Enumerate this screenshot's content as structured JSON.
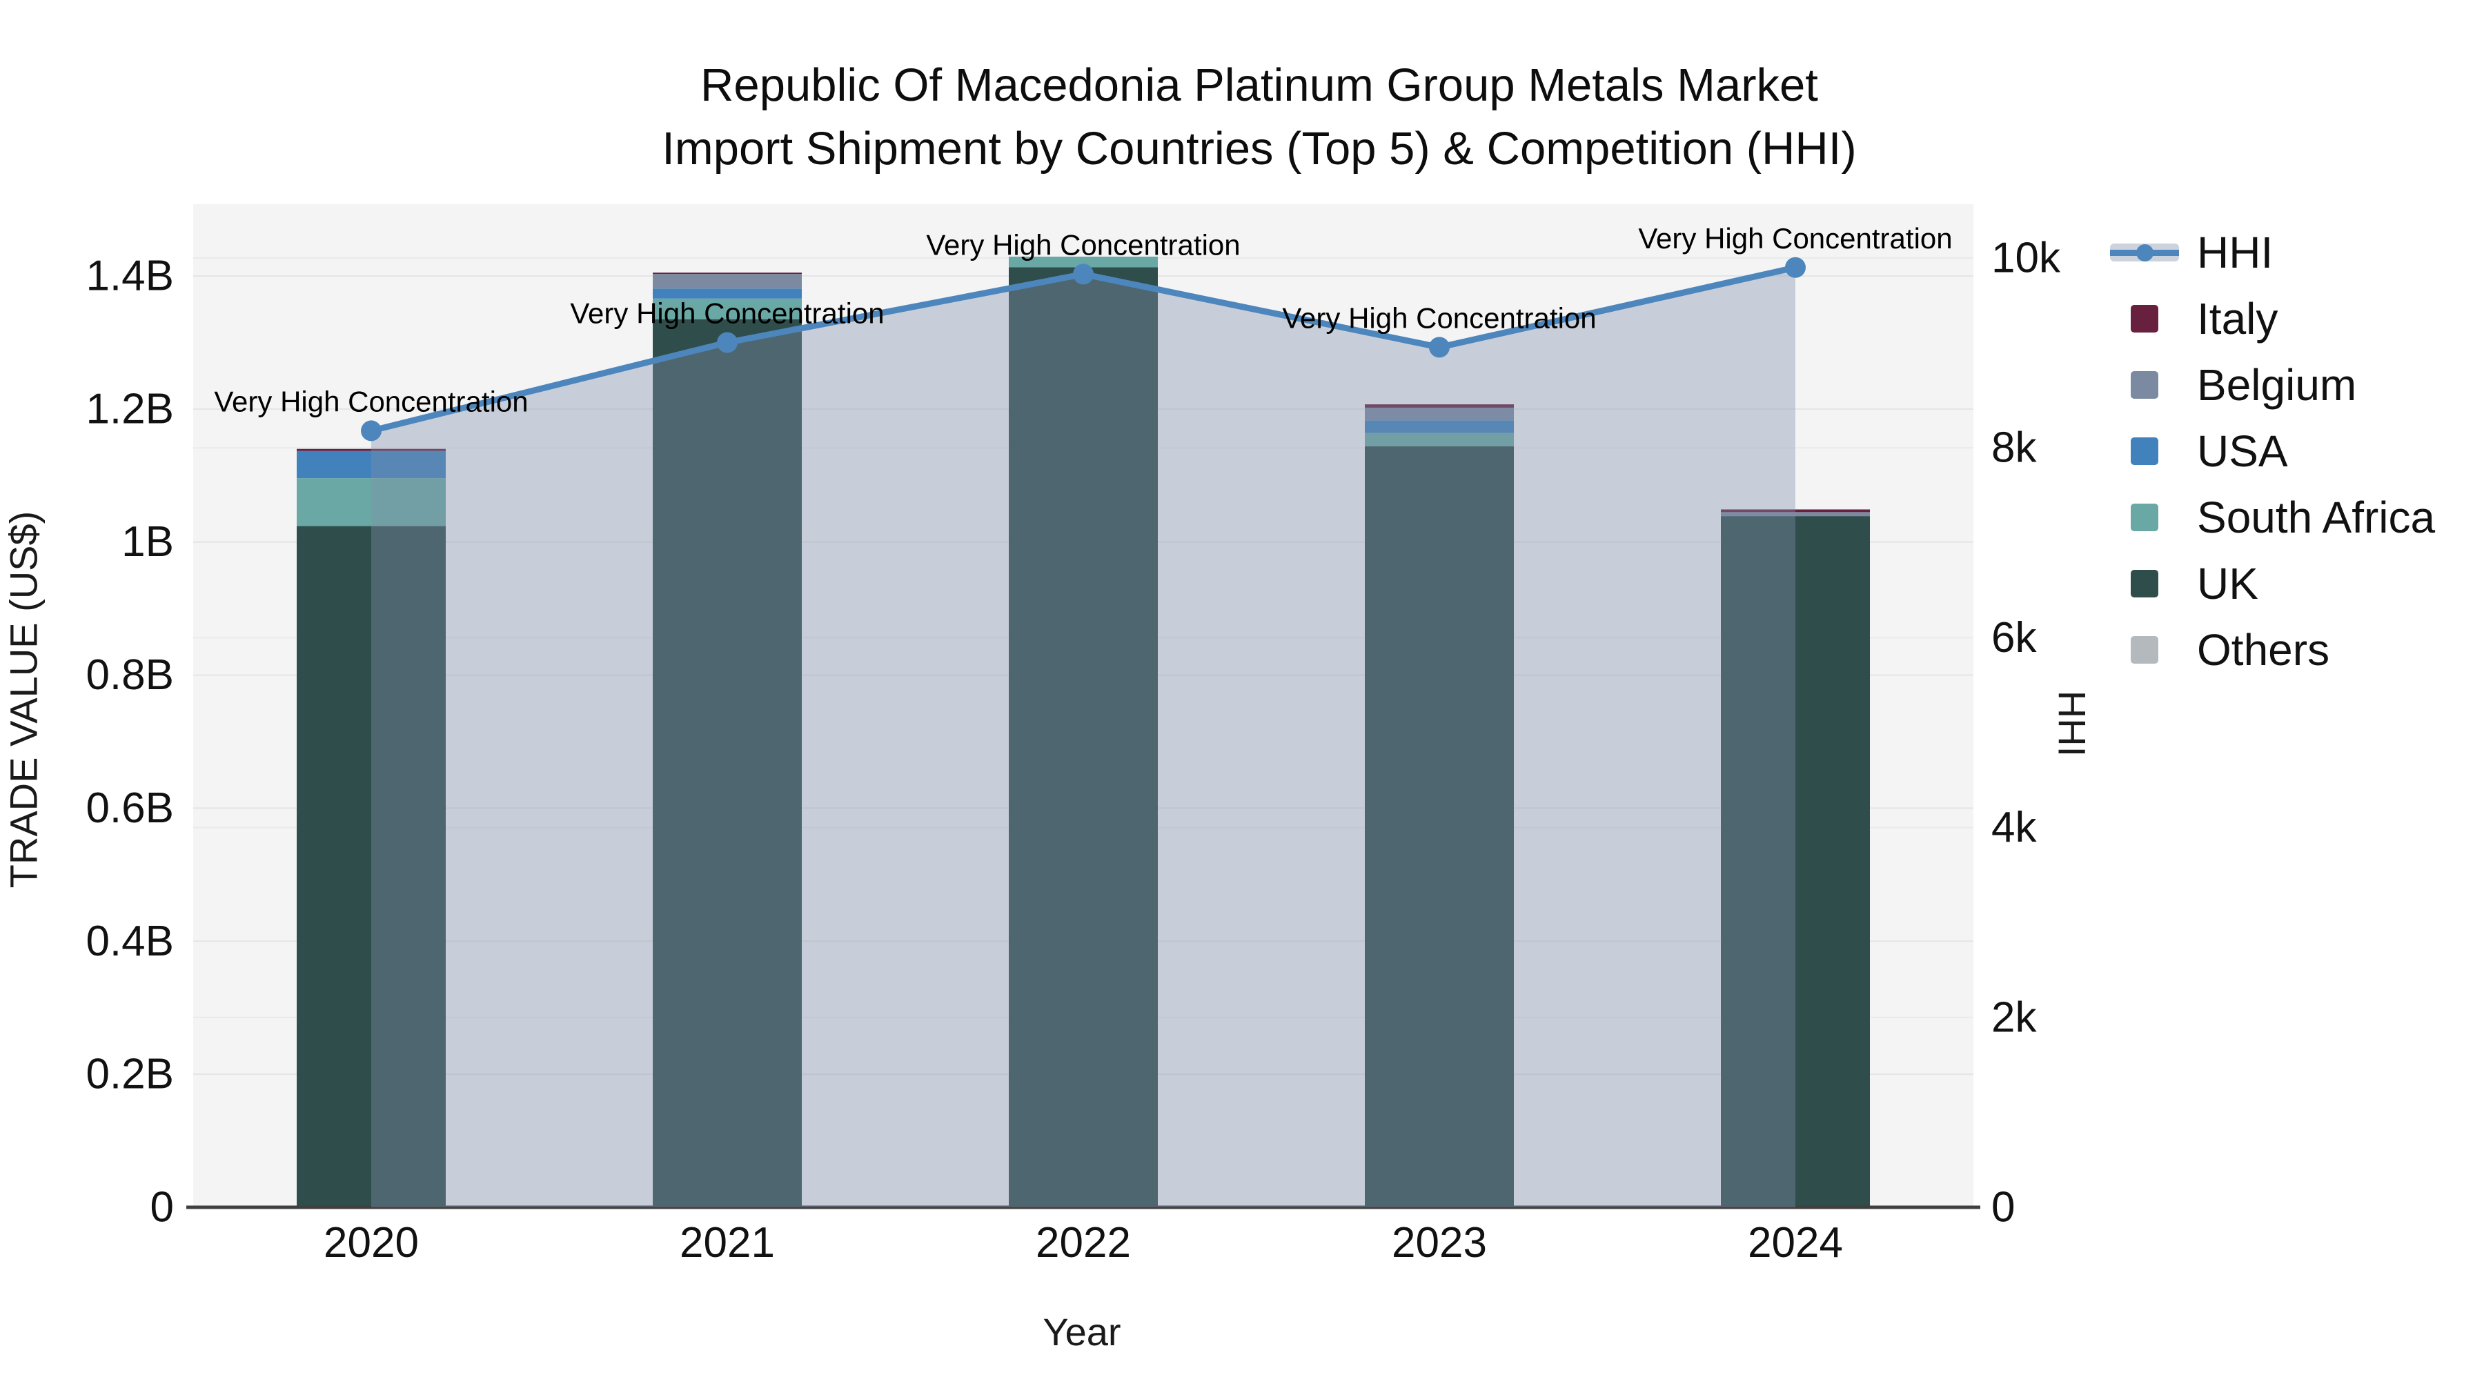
{
  "chart_data": {
    "type": "bar",
    "stacked": true,
    "title_line1": "Republic Of Macedonia Platinum Group Metals Market",
    "title_line2": "Import Shipment by Countries (Top 5) & Competition (HHI)",
    "categories": [
      "2020",
      "2021",
      "2022",
      "2023",
      "2024"
    ],
    "xlabel": "Year",
    "ylabel": "TRADE VALUE (US$)",
    "ylabel_right": "HHI",
    "unit": "US$ billions",
    "series": [
      {
        "name": "UK",
        "color": "#2f4d4b",
        "values_B": [
          1.024,
          1.335,
          1.413,
          1.144,
          1.039
        ]
      },
      {
        "name": "South Africa",
        "color": "#69a8a4",
        "values_B": [
          0.072,
          0.031,
          0.016,
          0.02,
          0
        ]
      },
      {
        "name": "USA",
        "color": "#4182bc",
        "values_B": [
          0.041,
          0.015,
          0,
          0.019,
          0
        ]
      },
      {
        "name": "Belgium",
        "color": "#7b8aa1",
        "values_B": [
          0,
          0.022,
          0,
          0.019,
          0.006
        ]
      },
      {
        "name": "Italy",
        "color": "#68203f",
        "values_B": [
          0.003,
          0.002,
          0,
          0.005,
          0.004
        ]
      },
      {
        "name": "Others",
        "color": "#b4b9bd",
        "values_B": [
          0,
          0,
          0,
          0,
          0
        ]
      }
    ],
    "bar_totals_B": [
      1.14,
      1.405,
      1.429,
      1.207,
      1.049
    ],
    "line_series": {
      "name": "HHI",
      "color": "#4d86bd",
      "area_color": "rgba(130,144,170,0.38)",
      "legend_band_color": "#cdd3dc",
      "values": [
        8180,
        9110,
        9830,
        9060,
        9900
      ]
    },
    "annotations": [
      "Very High Concentration",
      "Very High Concentration",
      "Very High Concentration",
      "Very High Concentration",
      "Very High Concentration"
    ],
    "y_axis_left": {
      "ticks": [
        "0",
        "0.2B",
        "0.4B",
        "0.6B",
        "0.8B",
        "1B",
        "1.2B",
        "1.4B"
      ],
      "tick_values_B": [
        0,
        0.2,
        0.4,
        0.6,
        0.8,
        1,
        1.2,
        1.4
      ],
      "range_B": [
        0,
        1.508
      ]
    },
    "y_axis_right": {
      "ticks": [
        "0",
        "2k",
        "4k",
        "6k",
        "8k",
        "10k"
      ],
      "tick_values": [
        0,
        2000,
        4000,
        6000,
        8000,
        10000
      ],
      "range": [
        0,
        10560
      ]
    },
    "legend": {
      "position": "right",
      "items": [
        "HHI",
        "Italy",
        "Belgium",
        "USA",
        "South Africa",
        "UK",
        "Others"
      ]
    },
    "grid": true,
    "colors": {
      "plot_bg": "#f4f4f5",
      "grid_left": "#e4e5e7",
      "grid_right": "#e9eaec",
      "axis_line": "#3f3f3f",
      "text": "#111111"
    }
  }
}
